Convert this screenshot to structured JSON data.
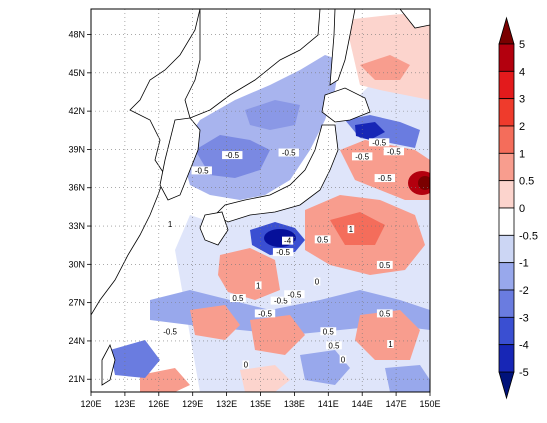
{
  "map": {
    "longitude_labels": [
      "120E",
      "123E",
      "126E",
      "129E",
      "132E",
      "135E",
      "138E",
      "141E",
      "144E",
      "147E",
      "150E"
    ],
    "latitude_labels": [
      "21N",
      "24N",
      "27N",
      "30N",
      "33N",
      "36N",
      "39N",
      "42N",
      "45N",
      "48N"
    ],
    "lon_range": [
      120,
      150
    ],
    "lat_range": [
      20,
      50
    ],
    "contour_labels": [
      {
        "text": "-0.5",
        "lon": 132.5,
        "lat": 38.4
      },
      {
        "text": "-0.5",
        "lon": 129.8,
        "lat": 37.2
      },
      {
        "text": "-0.5",
        "lon": 137.5,
        "lat": 38.6
      },
      {
        "text": "-0.5",
        "lon": 144.0,
        "lat": 38.3
      },
      {
        "text": "-0.5",
        "lon": 145.5,
        "lat": 39.4
      },
      {
        "text": "-0.5",
        "lon": 146.8,
        "lat": 38.7
      },
      {
        "text": "-0.5",
        "lon": 146.0,
        "lat": 36.6
      },
      {
        "text": "-4",
        "lon": 137.4,
        "lat": 31.7
      },
      {
        "text": "-0.5",
        "lon": 137.0,
        "lat": 30.8
      },
      {
        "text": "0.5",
        "lon": 140.5,
        "lat": 31.8
      },
      {
        "text": "1",
        "lon": 143.0,
        "lat": 32.6
      },
      {
        "text": "1",
        "lon": 134.8,
        "lat": 28.2
      },
      {
        "text": "0.5",
        "lon": 133.0,
        "lat": 27.2
      },
      {
        "text": "-0.5",
        "lon": 136.8,
        "lat": 27.0
      },
      {
        "text": "-0.5",
        "lon": 138.0,
        "lat": 27.5
      },
      {
        "text": "-0.5",
        "lon": 135.4,
        "lat": 26.0
      },
      {
        "text": "0.5",
        "lon": 146.0,
        "lat": 29.8
      },
      {
        "text": "0.5",
        "lon": 146.0,
        "lat": 26.0
      },
      {
        "text": "-0.5",
        "lon": 127.0,
        "lat": 24.6
      },
      {
        "text": "0.5",
        "lon": 141.0,
        "lat": 24.6
      },
      {
        "text": "0.5",
        "lon": 141.5,
        "lat": 23.5
      },
      {
        "text": "1",
        "lon": 146.5,
        "lat": 23.6
      },
      {
        "text": "0",
        "lon": 140.0,
        "lat": 28.5
      },
      {
        "text": "0",
        "lon": 142.3,
        "lat": 22.4
      },
      {
        "text": "0",
        "lon": 133.7,
        "lat": 22.0
      },
      {
        "text": "1",
        "lon": 127.0,
        "lat": 33.0
      }
    ]
  },
  "colorbar": {
    "labels": [
      "5",
      "4",
      "3",
      "2",
      "1",
      "0.5",
      "0",
      "-0.5",
      "-1",
      "-2",
      "-3",
      "-4",
      "-5"
    ],
    "colors": [
      "#b3000e",
      "#e31a1c",
      "#ef3b2c",
      "#f46d5b",
      "#f89d8e",
      "#fcd4cd",
      "#ffffff",
      "#ccd6f4",
      "#98a8ec",
      "#6a7ce0",
      "#3a4fd2",
      "#1726b6",
      "#06109a"
    ],
    "top_color": "#7a0000",
    "bottom_color": "#00127a"
  }
}
